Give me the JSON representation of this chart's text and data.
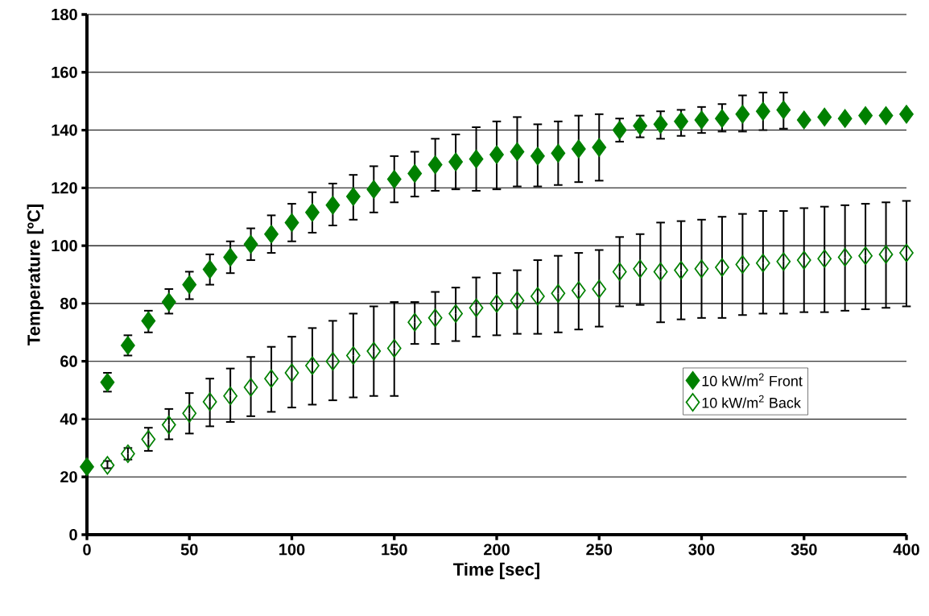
{
  "chart_data": {
    "type": "scatter",
    "xlabel": "Time [sec]",
    "ylabel": "Temperature [ºC]",
    "x": [
      0,
      10,
      20,
      30,
      40,
      50,
      60,
      70,
      80,
      90,
      100,
      110,
      120,
      130,
      140,
      150,
      160,
      170,
      180,
      190,
      200,
      210,
      220,
      230,
      240,
      250,
      260,
      270,
      280,
      290,
      300,
      310,
      320,
      330,
      340,
      350,
      360,
      370,
      380,
      390,
      400
    ],
    "series": [
      {
        "name": "10 kW/m$^{2}$ Front",
        "color": "#008000",
        "values": [
          23.5,
          52.7,
          65.5,
          74,
          80.5,
          86.5,
          91.8,
          96,
          100.5,
          104,
          108,
          111.5,
          114,
          117,
          119.5,
          123,
          125,
          128,
          129,
          130,
          131.5,
          132.5,
          131,
          132,
          133.5,
          134,
          140,
          141.5,
          142,
          143,
          143.5,
          144,
          145.5,
          146.5,
          147,
          143.5,
          144.5,
          144,
          145,
          145,
          145.5
        ],
        "errors": [
          null,
          [
            49.5,
            56
          ],
          [
            62,
            69
          ],
          [
            70,
            77.5
          ],
          [
            76.5,
            85
          ],
          [
            81.5,
            91
          ],
          [
            86.5,
            97
          ],
          [
            90.5,
            101.5
          ],
          [
            95,
            106
          ],
          [
            97.5,
            110.5
          ],
          [
            101.5,
            114.5
          ],
          [
            104.5,
            118.5
          ],
          [
            107,
            121.5
          ],
          [
            109,
            124.5
          ],
          [
            111.5,
            127.5
          ],
          [
            115,
            131
          ],
          [
            117,
            132.5
          ],
          [
            119,
            137
          ],
          [
            119.5,
            138.5
          ],
          [
            119,
            141
          ],
          [
            119.5,
            143
          ],
          [
            120.5,
            144.5
          ],
          [
            120.5,
            142
          ],
          [
            121,
            143
          ],
          [
            122,
            145
          ],
          [
            122.5,
            145.5
          ],
          [
            136,
            144
          ],
          [
            137.5,
            145
          ],
          [
            137,
            146.5
          ],
          [
            138,
            147
          ],
          [
            139,
            148
          ],
          [
            139.5,
            149
          ],
          [
            139.5,
            152
          ],
          [
            140,
            153
          ],
          [
            140.5,
            153
          ],
          null,
          null,
          null,
          null,
          null,
          null
        ]
      },
      {
        "name": "10 kW/m$^{2}$ Back",
        "color": "#008000",
        "values": [
          null,
          24,
          28,
          33,
          38,
          42,
          46,
          48,
          51,
          54,
          56,
          58.5,
          60,
          62,
          63.5,
          64.5,
          73.5,
          75,
          76.5,
          78.5,
          80,
          81,
          82.5,
          83.5,
          84.5,
          85,
          91,
          92,
          91,
          91.5,
          92,
          92.5,
          93.5,
          94,
          94.5,
          95,
          95.5,
          96,
          96.5,
          97,
          97.5
        ],
        "errors": [
          null,
          [
            23,
            25.5
          ],
          [
            26,
            30
          ],
          [
            29,
            37
          ],
          [
            33,
            43.5
          ],
          [
            35,
            49
          ],
          [
            37.5,
            54
          ],
          [
            39,
            57.5
          ],
          [
            41,
            61.5
          ],
          [
            42.5,
            65
          ],
          [
            44,
            68.5
          ],
          [
            45,
            71.5
          ],
          [
            46.5,
            74
          ],
          [
            47.5,
            76.5
          ],
          [
            48,
            79
          ],
          [
            48,
            80.5
          ],
          [
            66,
            80.5
          ],
          [
            66,
            84
          ],
          [
            67,
            85.5
          ],
          [
            68.5,
            89
          ],
          [
            69,
            90.5
          ],
          [
            69.5,
            91.5
          ],
          [
            69.5,
            95
          ],
          [
            70,
            96.5
          ],
          [
            71,
            97.5
          ],
          [
            72,
            98.5
          ],
          [
            79,
            103
          ],
          [
            79.5,
            104
          ],
          [
            73.5,
            108
          ],
          [
            74.5,
            108.5
          ],
          [
            75,
            109
          ],
          [
            75,
            110
          ],
          [
            76,
            111
          ],
          [
            76.5,
            112
          ],
          [
            76.5,
            112
          ],
          [
            77,
            113
          ],
          [
            77,
            113.5
          ],
          [
            77.5,
            114
          ],
          [
            78,
            114.5
          ],
          [
            78.5,
            115
          ],
          [
            79,
            115.5
          ]
        ]
      }
    ],
    "xlim": [
      0,
      400
    ],
    "ylim": [
      0,
      180
    ],
    "xticks": [
      0,
      50,
      100,
      150,
      200,
      250,
      300,
      350,
      400
    ],
    "yticks": [
      0,
      20,
      40,
      60,
      80,
      100,
      120,
      140,
      160,
      180
    ],
    "grid": "y",
    "legend": "right",
    "marker": "diamond"
  }
}
